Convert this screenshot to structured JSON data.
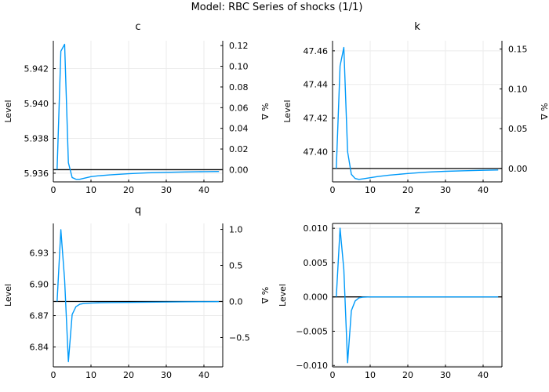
{
  "suptitle": "Model: RBC        Series of shocks  (1/1)",
  "colors": {
    "series": "#009af9",
    "steady": "#000000",
    "grid": "#ebebeb"
  },
  "chart_data": [
    {
      "type": "line",
      "title": "c",
      "ylabel": "Level",
      "ylabel_right": "% Δ",
      "steady_state": 5.9362,
      "xlim": [
        0,
        45
      ],
      "ylim": [
        5.9355,
        5.9436
      ],
      "ylim_right": [
        -0.0118,
        0.1247
      ],
      "xticks": [
        0,
        10,
        20,
        30,
        40
      ],
      "yticks": [
        5.936,
        5.938,
        5.94,
        5.942
      ],
      "ytick_labels": [
        "5.936",
        "5.938",
        "5.940",
        "5.942"
      ],
      "yticks_right": [
        0.0,
        0.02,
        0.04,
        0.06,
        0.08,
        0.1,
        0.12
      ],
      "ytick_labels_right": [
        "0.00",
        "0.02",
        "0.04",
        "0.06",
        "0.08",
        "0.10",
        "0.12"
      ],
      "grid": true,
      "x": [
        1,
        2,
        3,
        4,
        5,
        6,
        7,
        8,
        10,
        12,
        15,
        20,
        25,
        30,
        35,
        40,
        44
      ],
      "values": [
        5.9362,
        5.943,
        5.9434,
        5.9366,
        5.93575,
        5.93565,
        5.93565,
        5.9357,
        5.9358,
        5.93585,
        5.9359,
        5.93597,
        5.93602,
        5.93605,
        5.93607,
        5.93609,
        5.9361
      ]
    },
    {
      "type": "line",
      "title": "k",
      "ylabel": "Level",
      "ylabel_right": "% Δ",
      "steady_state": 47.39,
      "xlim": [
        0,
        45
      ],
      "ylim": [
        47.382,
        47.466
      ],
      "ylim_right": [
        -0.0169,
        0.1604
      ],
      "xticks": [
        0,
        10,
        20,
        30,
        40
      ],
      "yticks": [
        47.4,
        47.42,
        47.44,
        47.46
      ],
      "ytick_labels": [
        "47.40",
        "47.42",
        "47.44",
        "47.46"
      ],
      "yticks_right": [
        0.0,
        0.05,
        0.1,
        0.15
      ],
      "ytick_labels_right": [
        "0.00",
        "0.05",
        "0.10",
        "0.15"
      ],
      "grid": true,
      "x": [
        1,
        2,
        3,
        4,
        5,
        6,
        7,
        8,
        10,
        12,
        15,
        20,
        25,
        30,
        35,
        40,
        44
      ],
      "values": [
        47.39,
        47.451,
        47.462,
        47.4,
        47.3865,
        47.384,
        47.3835,
        47.3838,
        47.3845,
        47.3852,
        47.386,
        47.387,
        47.3878,
        47.3883,
        47.3886,
        47.3889,
        47.3891
      ]
    },
    {
      "type": "line",
      "title": "q",
      "ylabel": "Level",
      "ylabel_right": "% Δ",
      "steady_state": 6.8835,
      "xlim": [
        0,
        45
      ],
      "ylim": [
        6.821,
        6.958
      ],
      "ylim_right": [
        -0.9082,
        1.0821
      ],
      "xticks": [
        0,
        10,
        20,
        30,
        40
      ],
      "yticks": [
        6.84,
        6.87,
        6.9,
        6.93
      ],
      "ytick_labels": [
        "6.84",
        "6.87",
        "6.90",
        "6.93"
      ],
      "yticks_right": [
        -0.5,
        0.0,
        0.5,
        1.0
      ],
      "ytick_labels_right": [
        "−0.5",
        "0.0",
        "0.5",
        "1.0"
      ],
      "grid": true,
      "x": [
        1,
        2,
        3,
        4,
        5,
        6,
        7,
        8,
        10,
        12,
        15,
        20,
        25,
        30,
        35,
        40,
        44
      ],
      "values": [
        6.8835,
        6.952,
        6.904,
        6.826,
        6.871,
        6.8785,
        6.8808,
        6.8815,
        6.882,
        6.8822,
        6.8824,
        6.8826,
        6.8828,
        6.883,
        6.8832,
        6.8833,
        6.8834
      ]
    },
    {
      "type": "line",
      "title": "z",
      "ylabel": "Level",
      "steady_state": 0.0,
      "xlim": [
        0,
        45
      ],
      "ylim": [
        -0.0102,
        0.0107
      ],
      "xticks": [
        0,
        10,
        20,
        30,
        40
      ],
      "yticks": [
        -0.01,
        -0.005,
        0.0,
        0.005,
        0.01
      ],
      "ytick_labels": [
        "−0.010",
        "−0.005",
        "0.000",
        "0.005",
        "0.010"
      ],
      "grid": true,
      "x": [
        1,
        2,
        3,
        4,
        5,
        6,
        7,
        8,
        10,
        12,
        15,
        20,
        25,
        30,
        35,
        40,
        44
      ],
      "values": [
        0.0,
        0.01,
        0.004,
        -0.0096,
        -0.002,
        -0.0006,
        -0.00015,
        -4e-05,
        0.0,
        0.0,
        0.0,
        0.0,
        0.0,
        0.0,
        0.0,
        0.0,
        0.0
      ]
    }
  ]
}
